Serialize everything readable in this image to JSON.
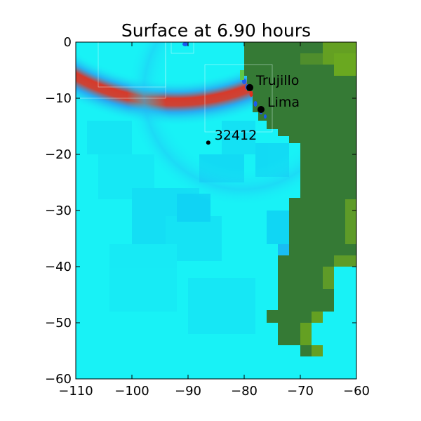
{
  "chart_data": {
    "type": "heatmap",
    "title": "Surface at 6.90 hours",
    "xlabel": "",
    "ylabel": "",
    "xlim": [
      -110,
      -60
    ],
    "ylim": [
      -60,
      0
    ],
    "x_ticks": [
      -110,
      -100,
      -90,
      -80,
      -70,
      -60
    ],
    "y_ticks": [
      0,
      -10,
      -20,
      -30,
      -40,
      -50,
      -60
    ],
    "x_tick_labels": [
      "−110",
      "−100",
      "−90",
      "−80",
      "−70",
      "−60"
    ],
    "y_tick_labels": [
      "0",
      "−10",
      "−20",
      "−30",
      "−40",
      "−50",
      "−60"
    ],
    "grid": false,
    "colors": {
      "ocean": "#18f2f6",
      "ocean_dark": "#14e0f2",
      "land": "#357a35",
      "land_high": "#64a022",
      "wave_crest": "#e03020",
      "wave_trough": "#1a5cf0",
      "marker": "#000000"
    },
    "points": [
      {
        "name": "Trujillo",
        "lon": -79.0,
        "lat": -8.1,
        "size": "large"
      },
      {
        "name": "Lima",
        "lon": -77.0,
        "lat": -12.0,
        "size": "large"
      },
      {
        "name": "32412",
        "lon": -86.4,
        "lat": -17.9,
        "size": "small"
      }
    ]
  }
}
